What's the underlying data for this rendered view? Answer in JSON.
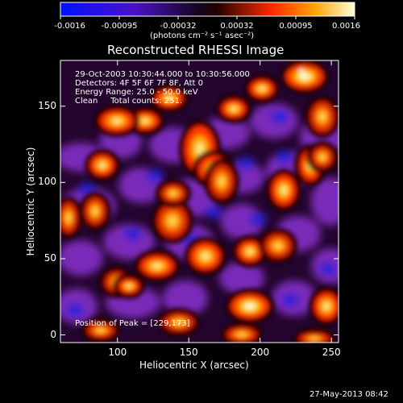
{
  "colorbar": {
    "ticks": [
      "-0.0016",
      "-0.00095",
      "-0.00032",
      "0.00032",
      "0.00095",
      "0.0016"
    ],
    "unit_label": "(photons cm⁻² s⁻¹ asec⁻²)"
  },
  "chart_data": {
    "type": "heatmap",
    "title": "Reconstructed RHESSI Image",
    "xlabel": "Heliocentric X (arcsec)",
    "ylabel": "Heliocentric Y (arcsec)",
    "xlim": [
      60,
      255
    ],
    "ylim": [
      -5,
      180
    ],
    "x_ticks": [
      100,
      150,
      200,
      250
    ],
    "y_ticks": [
      0,
      50,
      100,
      150
    ],
    "value_range": [
      -0.0016,
      0.0016
    ],
    "annotations": [
      "29-Oct-2003 10:30:44.000 to 10:30:56.000",
      "Detectors: 4F 5F 6F 7F 8F, Att 0",
      "Energy Range: 25.0 - 50.0 keV",
      "Clean     Total counts: 251."
    ],
    "peak_label": "Position of Peak = [229,173]",
    "peak_position": [
      229,
      173
    ]
  },
  "footer": {
    "timestamp": "27-May-2013 08:42"
  }
}
